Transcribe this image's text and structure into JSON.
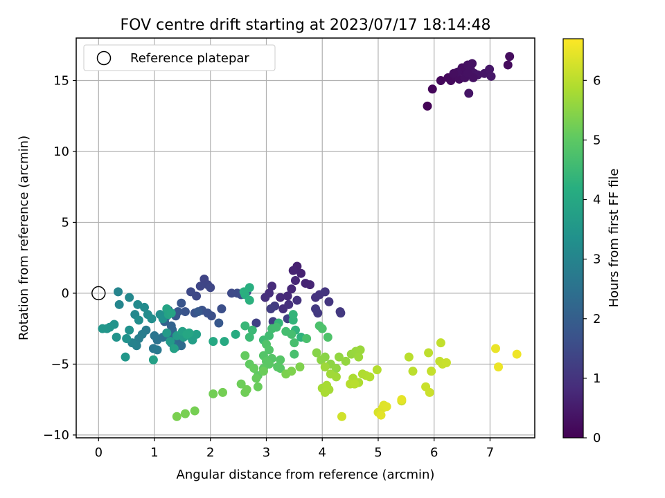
{
  "chart_data": {
    "type": "scatter",
    "title": "FOV centre drift starting at 2023/07/17 18:14:48",
    "xlabel": "Angular distance from reference (arcmin)",
    "ylabel": "Rotation from reference (arcmin)",
    "xlim": [
      -0.4,
      7.8
    ],
    "ylim": [
      -10.2,
      18.0
    ],
    "xticks": [
      0,
      1,
      2,
      3,
      4,
      5,
      6,
      7
    ],
    "yticks": [
      -10,
      -5,
      0,
      5,
      10,
      15
    ],
    "grid": true,
    "legend": {
      "position": "top-left",
      "entries": [
        "Reference platepar"
      ]
    },
    "colorbar": {
      "label": "Hours from first FF file",
      "min": 0,
      "max": 6.7,
      "ticks": [
        0,
        1,
        2,
        3,
        4,
        5,
        6
      ],
      "colormap": "viridis"
    },
    "reference_point": {
      "x": 0,
      "y": 0,
      "label": "Reference platepar"
    },
    "points": [
      [
        5.88,
        13.2,
        0.05
      ],
      [
        5.97,
        14.4,
        0.1
      ],
      [
        6.12,
        15.0,
        0.12
      ],
      [
        6.25,
        15.2,
        0.15
      ],
      [
        6.3,
        15.0,
        0.18
      ],
      [
        6.38,
        15.3,
        0.2
      ],
      [
        6.45,
        15.1,
        0.22
      ],
      [
        6.5,
        15.9,
        0.25
      ],
      [
        6.55,
        15.6,
        0.27
      ],
      [
        6.6,
        16.1,
        0.3
      ],
      [
        6.65,
        15.8,
        0.32
      ],
      [
        6.68,
        16.2,
        0.33
      ],
      [
        6.72,
        15.5,
        0.35
      ],
      [
        6.62,
        14.1,
        0.36
      ],
      [
        6.78,
        15.4,
        0.38
      ],
      [
        6.9,
        15.5,
        0.4
      ],
      [
        6.99,
        15.8,
        0.42
      ],
      [
        7.02,
        15.3,
        0.43
      ],
      [
        7.32,
        16.1,
        0.2
      ],
      [
        7.35,
        16.7,
        0.22
      ],
      [
        6.55,
        15.2,
        0.28
      ],
      [
        6.42,
        15.6,
        0.29
      ],
      [
        6.7,
        15.2,
        0.31
      ],
      [
        6.35,
        15.5,
        0.24
      ],
      [
        6.6,
        15.5,
        0.3
      ],
      [
        3.55,
        1.9,
        0.6
      ],
      [
        3.62,
        1.4,
        0.62
      ],
      [
        3.48,
        1.6,
        0.65
      ],
      [
        3.7,
        0.7,
        0.68
      ],
      [
        3.78,
        0.6,
        0.7
      ],
      [
        3.52,
        0.9,
        0.72
      ],
      [
        3.45,
        0.3,
        0.75
      ],
      [
        3.38,
        -0.2,
        0.78
      ],
      [
        3.25,
        -0.3,
        0.8
      ],
      [
        3.1,
        0.5,
        0.82
      ],
      [
        3.05,
        0.0,
        0.85
      ],
      [
        2.98,
        -0.3,
        0.88
      ],
      [
        3.3,
        -1.1,
        0.9
      ],
      [
        3.4,
        -0.8,
        0.92
      ],
      [
        3.55,
        -0.5,
        0.95
      ],
      [
        3.88,
        -0.3,
        0.97
      ],
      [
        3.95,
        -0.1,
        1.0
      ],
      [
        4.05,
        0.1,
        1.02
      ],
      [
        4.12,
        -0.6,
        1.05
      ],
      [
        4.32,
        -1.3,
        1.08
      ],
      [
        4.33,
        -1.4,
        1.1
      ],
      [
        3.92,
        -1.4,
        1.12
      ],
      [
        3.88,
        -1.1,
        1.14
      ],
      [
        3.15,
        -0.9,
        1.16
      ],
      [
        3.08,
        -1.1,
        1.2
      ],
      [
        3.12,
        -2.0,
        1.25
      ],
      [
        2.82,
        -2.1,
        1.3
      ],
      [
        3.38,
        -1.8,
        1.28
      ],
      [
        1.89,
        1.0,
        1.35
      ],
      [
        1.95,
        0.6,
        1.38
      ],
      [
        1.82,
        0.5,
        1.4
      ],
      [
        2.0,
        0.4,
        1.42
      ],
      [
        1.75,
        -0.2,
        1.45
      ],
      [
        1.65,
        0.1,
        1.48
      ],
      [
        2.38,
        0.0,
        1.5
      ],
      [
        2.48,
        0.0,
        1.52
      ],
      [
        2.55,
        -0.1,
        1.55
      ],
      [
        2.65,
        0.1,
        1.58
      ],
      [
        2.2,
        -1.1,
        1.6
      ],
      [
        2.02,
        -1.6,
        1.62
      ],
      [
        1.95,
        -1.4,
        1.65
      ],
      [
        1.85,
        -1.2,
        1.67
      ],
      [
        1.72,
        -1.4,
        1.7
      ],
      [
        1.55,
        -1.3,
        1.72
      ],
      [
        1.48,
        -0.7,
        1.75
      ],
      [
        1.42,
        -1.3,
        1.78
      ],
      [
        1.38,
        -1.6,
        1.8
      ],
      [
        2.15,
        -2.1,
        1.83
      ],
      [
        1.78,
        -1.3,
        1.85
      ],
      [
        1.25,
        -1.2,
        2.0
      ],
      [
        1.22,
        -1.6,
        2.05
      ],
      [
        1.18,
        -2.0,
        2.1
      ],
      [
        1.3,
        -2.3,
        2.12
      ],
      [
        1.32,
        -2.6,
        2.15
      ],
      [
        1.28,
        -3.1,
        2.2
      ],
      [
        1.35,
        -3.3,
        2.25
      ],
      [
        1.45,
        -3.4,
        2.3
      ],
      [
        1.48,
        -3.7,
        2.35
      ],
      [
        1.38,
        -3.8,
        2.4
      ],
      [
        1.3,
        -3.5,
        2.45
      ],
      [
        1.15,
        -3.1,
        2.5
      ],
      [
        1.05,
        -3.3,
        2.55
      ],
      [
        1.0,
        -3.0,
        2.6
      ],
      [
        0.98,
        -3.9,
        2.65
      ],
      [
        1.05,
        -4.0,
        2.7
      ],
      [
        0.85,
        -2.6,
        2.75
      ],
      [
        0.78,
        -2.9,
        2.8
      ],
      [
        0.72,
        -3.2,
        2.85
      ],
      [
        0.68,
        -3.7,
        2.9
      ],
      [
        0.6,
        -3.5,
        2.95
      ],
      [
        0.35,
        0.1,
        3.0
      ],
      [
        0.37,
        -0.8,
        3.05
      ],
      [
        0.55,
        -0.3,
        3.1
      ],
      [
        0.65,
        -1.5,
        3.12
      ],
      [
        0.7,
        -0.8,
        3.15
      ],
      [
        0.82,
        -1.0,
        3.18
      ],
      [
        0.88,
        -1.5,
        3.22
      ],
      [
        0.72,
        -1.9,
        3.25
      ],
      [
        0.95,
        -1.8,
        3.28
      ],
      [
        1.1,
        -1.5,
        3.3
      ],
      [
        1.15,
        -1.8,
        3.32
      ],
      [
        0.55,
        -2.6,
        3.35
      ],
      [
        0.5,
        -3.2,
        3.38
      ],
      [
        0.32,
        -3.1,
        3.4
      ],
      [
        0.28,
        -2.2,
        3.42
      ],
      [
        0.2,
        -2.4,
        3.45
      ],
      [
        0.15,
        -2.5,
        3.47
      ],
      [
        0.07,
        -2.5,
        3.5
      ],
      [
        0.48,
        -4.5,
        3.52
      ],
      [
        1.22,
        -2.8,
        3.6
      ],
      [
        1.28,
        -3.4,
        3.62
      ],
      [
        1.4,
        -3.0,
        3.65
      ],
      [
        1.52,
        -3.1,
        3.68
      ],
      [
        1.62,
        -3.0,
        3.7
      ],
      [
        1.68,
        -3.3,
        3.72
      ],
      [
        1.75,
        -2.9,
        3.75
      ],
      [
        0.98,
        -4.7,
        3.78
      ],
      [
        1.35,
        -3.9,
        3.8
      ],
      [
        1.5,
        -2.7,
        3.82
      ],
      [
        1.25,
        -1.5,
        3.85
      ],
      [
        1.22,
        -1.1,
        3.88
      ],
      [
        1.3,
        -1.4,
        3.9
      ],
      [
        1.62,
        -2.8,
        3.92
      ],
      [
        1.58,
        -2.9,
        3.95
      ],
      [
        2.05,
        -3.4,
        4.0
      ],
      [
        2.25,
        -3.4,
        4.05
      ],
      [
        2.45,
        -2.9,
        4.1
      ],
      [
        2.62,
        -0.1,
        4.15
      ],
      [
        2.7,
        0.4,
        4.2
      ],
      [
        2.6,
        0.1,
        4.22
      ],
      [
        2.7,
        -0.5,
        4.25
      ],
      [
        3.62,
        -3.1,
        4.3
      ],
      [
        3.52,
        -2.6,
        4.32
      ],
      [
        3.48,
        -1.9,
        4.35
      ],
      [
        3.48,
        -1.5,
        4.38
      ],
      [
        3.22,
        -2.1,
        4.4
      ],
      [
        2.62,
        -2.3,
        4.45
      ],
      [
        2.75,
        -2.6,
        4.5
      ],
      [
        2.7,
        -3.1,
        4.52
      ],
      [
        2.95,
        -3.3,
        4.55
      ],
      [
        3.05,
        -3.0,
        4.58
      ],
      [
        3.1,
        -2.5,
        4.6
      ],
      [
        3.18,
        -2.4,
        4.62
      ],
      [
        3.35,
        -2.7,
        4.64
      ],
      [
        3.45,
        -2.9,
        4.66
      ],
      [
        3.5,
        -3.5,
        4.68
      ],
      [
        3.5,
        -4.3,
        4.7
      ],
      [
        3.72,
        -3.2,
        4.72
      ],
      [
        3.95,
        -2.3,
        4.75
      ],
      [
        4.0,
        -2.5,
        4.78
      ],
      [
        4.1,
        -3.1,
        4.8
      ],
      [
        3.0,
        -3.6,
        4.82
      ],
      [
        3.05,
        -4.0,
        4.84
      ],
      [
        2.95,
        -4.4,
        4.86
      ],
      [
        3.1,
        -4.6,
        4.88
      ],
      [
        3.25,
        -4.7,
        4.9
      ],
      [
        3.2,
        -5.2,
        4.92
      ],
      [
        3.25,
        -5.3,
        4.93
      ],
      [
        3.0,
        -4.8,
        4.95
      ],
      [
        3.05,
        -5.0,
        4.97
      ],
      [
        2.95,
        -5.3,
        5.0
      ],
      [
        2.85,
        -5.8,
        5.02
      ],
      [
        2.7,
        -5.0,
        5.05
      ],
      [
        2.62,
        -4.4,
        5.08
      ],
      [
        2.78,
        -5.3,
        5.1
      ],
      [
        2.82,
        -6.0,
        5.12
      ],
      [
        2.85,
        -6.6,
        5.14
      ],
      [
        2.95,
        -5.5,
        5.16
      ],
      [
        2.55,
        -6.4,
        5.18
      ],
      [
        2.62,
        -7.0,
        5.2
      ],
      [
        2.65,
        -6.8,
        5.22
      ],
      [
        2.05,
        -7.1,
        5.24
      ],
      [
        2.22,
        -7.0,
        5.26
      ],
      [
        1.72,
        -8.3,
        5.28
      ],
      [
        1.55,
        -8.5,
        5.3
      ],
      [
        1.4,
        -8.7,
        5.32
      ],
      [
        3.35,
        -5.7,
        5.34
      ],
      [
        3.45,
        -5.5,
        5.36
      ],
      [
        3.6,
        -5.2,
        5.38
      ],
      [
        3.9,
        -4.2,
        5.45
      ],
      [
        4.05,
        -4.5,
        5.48
      ],
      [
        3.98,
        -4.7,
        5.5
      ],
      [
        4.15,
        -5.0,
        5.52
      ],
      [
        4.25,
        -5.3,
        5.55
      ],
      [
        4.3,
        -4.5,
        5.58
      ],
      [
        4.42,
        -4.8,
        5.6
      ],
      [
        4.52,
        -4.3,
        5.62
      ],
      [
        4.6,
        -4.1,
        5.64
      ],
      [
        4.68,
        -4.0,
        5.66
      ],
      [
        4.65,
        -4.5,
        5.68
      ],
      [
        4.05,
        -5.2,
        5.7
      ],
      [
        4.15,
        -5.7,
        5.72
      ],
      [
        4.25,
        -5.9,
        5.74
      ],
      [
        4.0,
        -6.7,
        5.76
      ],
      [
        4.12,
        -6.8,
        5.78
      ],
      [
        4.08,
        -6.5,
        5.8
      ],
      [
        4.05,
        -7.0,
        5.82
      ],
      [
        4.55,
        -6.0,
        5.84
      ],
      [
        4.65,
        -6.3,
        5.86
      ],
      [
        4.72,
        -5.7,
        5.88
      ],
      [
        4.78,
        -5.8,
        5.9
      ],
      [
        4.85,
        -5.9,
        5.92
      ],
      [
        4.98,
        -5.4,
        5.94
      ],
      [
        4.5,
        -6.4,
        5.96
      ],
      [
        4.58,
        -6.4,
        5.98
      ],
      [
        5.55,
        -4.5,
        6.0
      ],
      [
        5.62,
        -5.5,
        6.02
      ],
      [
        5.9,
        -4.2,
        6.04
      ],
      [
        5.95,
        -5.5,
        6.06
      ],
      [
        6.12,
        -3.5,
        6.08
      ],
      [
        6.1,
        -4.8,
        6.1
      ],
      [
        6.15,
        -5.0,
        6.12
      ],
      [
        6.22,
        -4.9,
        6.14
      ],
      [
        5.85,
        -6.6,
        6.16
      ],
      [
        5.92,
        -7.0,
        6.18
      ],
      [
        5.42,
        -7.6,
        6.2
      ],
      [
        4.35,
        -8.7,
        6.22
      ],
      [
        5.0,
        -8.4,
        6.3
      ],
      [
        5.08,
        -8.1,
        6.35
      ],
      [
        5.1,
        -7.9,
        6.38
      ],
      [
        5.15,
        -8.0,
        6.4
      ],
      [
        5.05,
        -8.6,
        6.42
      ],
      [
        5.42,
        -7.5,
        6.45
      ],
      [
        7.1,
        -3.9,
        6.5
      ],
      [
        7.15,
        -5.2,
        6.52
      ],
      [
        7.48,
        -4.3,
        6.55
      ],
      [
        5.95,
        -5.5,
        6.1
      ]
    ]
  }
}
